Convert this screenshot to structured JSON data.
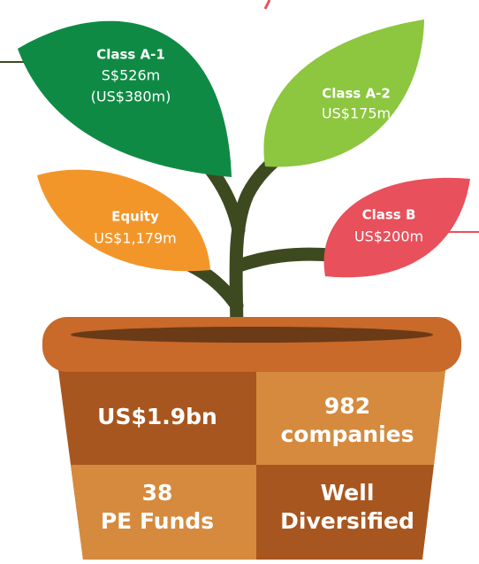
{
  "leaves": [
    {
      "title": "Class A-1",
      "lines": [
        "S$526m",
        "(US$380m)"
      ]
    },
    {
      "title": "Class A-2",
      "lines": [
        "US$175m"
      ]
    },
    {
      "title": "Equity",
      "lines": [
        "US$1,179m"
      ]
    },
    {
      "title": "Class B",
      "lines": [
        "US$200m"
      ]
    }
  ],
  "pot": {
    "cells": [
      [
        "US$1.9bn"
      ],
      [
        "982",
        "companies"
      ],
      [
        "38",
        "PE Funds"
      ],
      [
        "Well",
        "Diversified"
      ]
    ]
  }
}
